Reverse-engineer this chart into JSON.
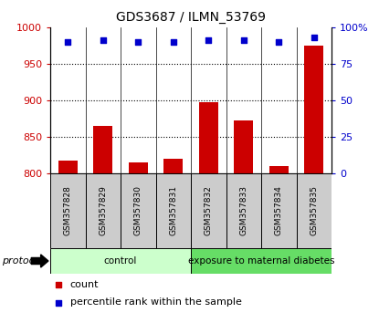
{
  "title": "GDS3687 / ILMN_53769",
  "samples": [
    "GSM357828",
    "GSM357829",
    "GSM357830",
    "GSM357831",
    "GSM357832",
    "GSM357833",
    "GSM357834",
    "GSM357835"
  ],
  "counts": [
    818,
    865,
    815,
    820,
    897,
    873,
    810,
    975
  ],
  "percentile_ranks": [
    90,
    91,
    90,
    90,
    91,
    91,
    90,
    93
  ],
  "bar_color": "#cc0000",
  "dot_color": "#0000cc",
  "ylim_left": [
    800,
    1000
  ],
  "ylim_right": [
    0,
    100
  ],
  "yticks_left": [
    800,
    850,
    900,
    950,
    1000
  ],
  "yticks_right": [
    0,
    25,
    50,
    75,
    100
  ],
  "ytick_labels_right": [
    "0",
    "25",
    "50",
    "75",
    "100%"
  ],
  "grid_ticks": [
    850,
    900,
    950
  ],
  "groups": [
    {
      "label": "control",
      "start": 0,
      "end": 3,
      "color": "#ccffcc"
    },
    {
      "label": "exposure to maternal diabetes",
      "start": 4,
      "end": 7,
      "color": "#66dd66"
    }
  ],
  "protocol_label": "protocol",
  "legend_items": [
    {
      "color": "#cc0000",
      "label": "count"
    },
    {
      "color": "#0000cc",
      "label": "percentile rank within the sample"
    }
  ],
  "bg_color": "#ffffff",
  "sample_label_color": "#cccccc"
}
